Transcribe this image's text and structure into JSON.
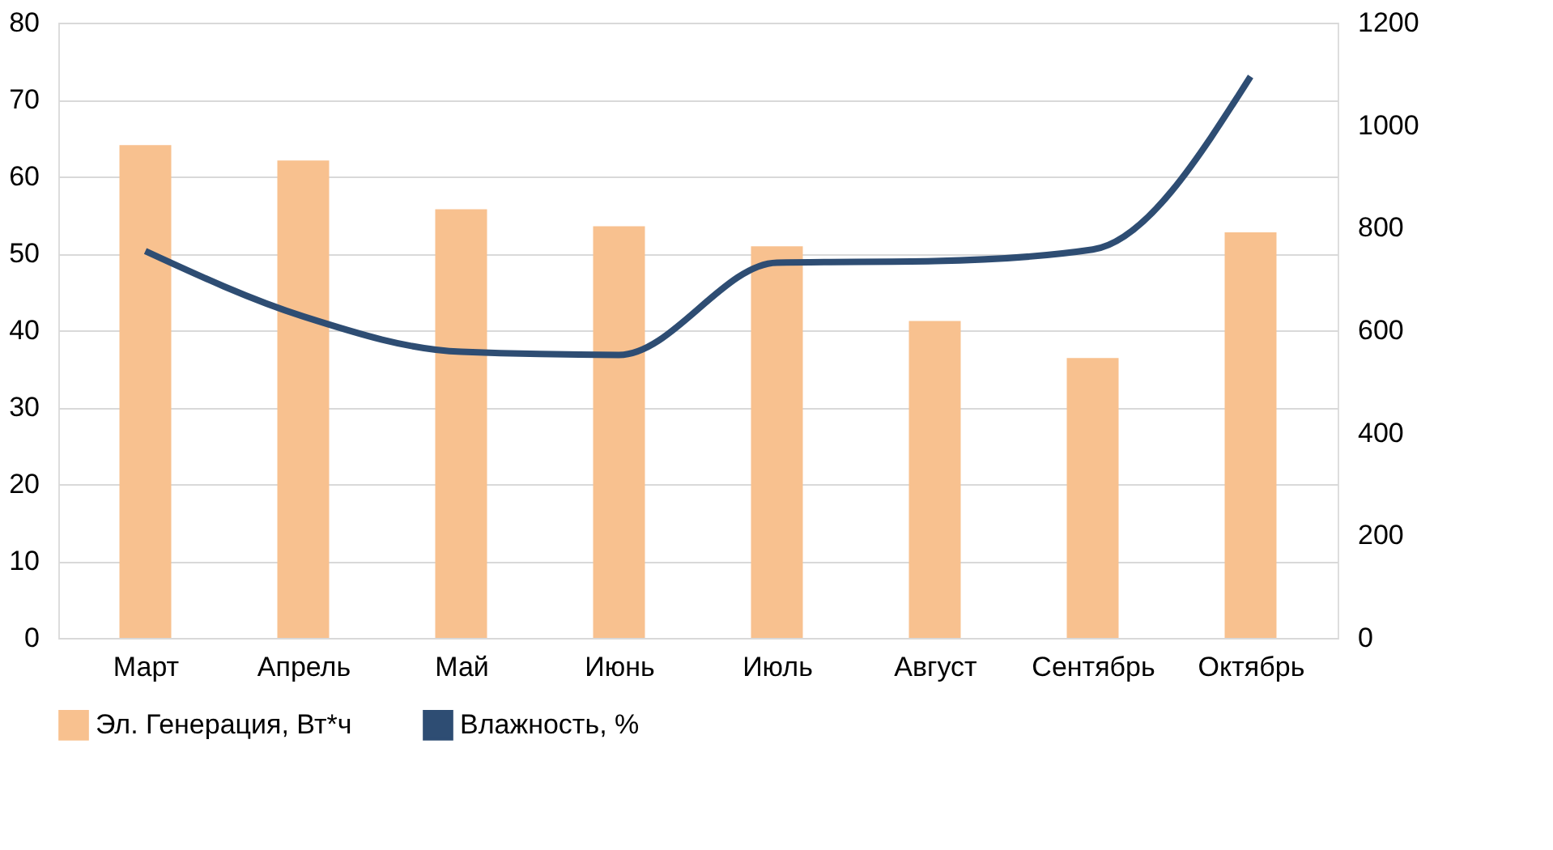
{
  "chart_data": {
    "type": "bar",
    "categories": [
      "Март",
      "Апрель",
      "Май",
      "Июнь",
      "Июль",
      "Август",
      "Сентябрь",
      "Октябрь"
    ],
    "series": [
      {
        "name": "Эл. Генерация, Вт*ч",
        "color": "#f8c18f",
        "axis": "y2",
        "values": [
          961,
          931,
          836,
          803,
          764,
          618,
          546,
          791
        ]
      },
      {
        "name": "Влажность, %",
        "color": "#2e4d73",
        "type": "line",
        "values": [
          50.3,
          41.8,
          37.2,
          36.8,
          48.8,
          49.0,
          50.5,
          73.0
        ]
      }
    ],
    "ylim": [
      0,
      80
    ],
    "yticks": [
      0,
      10,
      20,
      30,
      40,
      50,
      60,
      70,
      80
    ],
    "y2lim": [
      0,
      1200
    ],
    "y2ticks": [
      0,
      200,
      400,
      600,
      800,
      1000,
      1200
    ],
    "grid": "y",
    "legend": "bottom",
    "marker": "none",
    "line_style": "solid"
  }
}
